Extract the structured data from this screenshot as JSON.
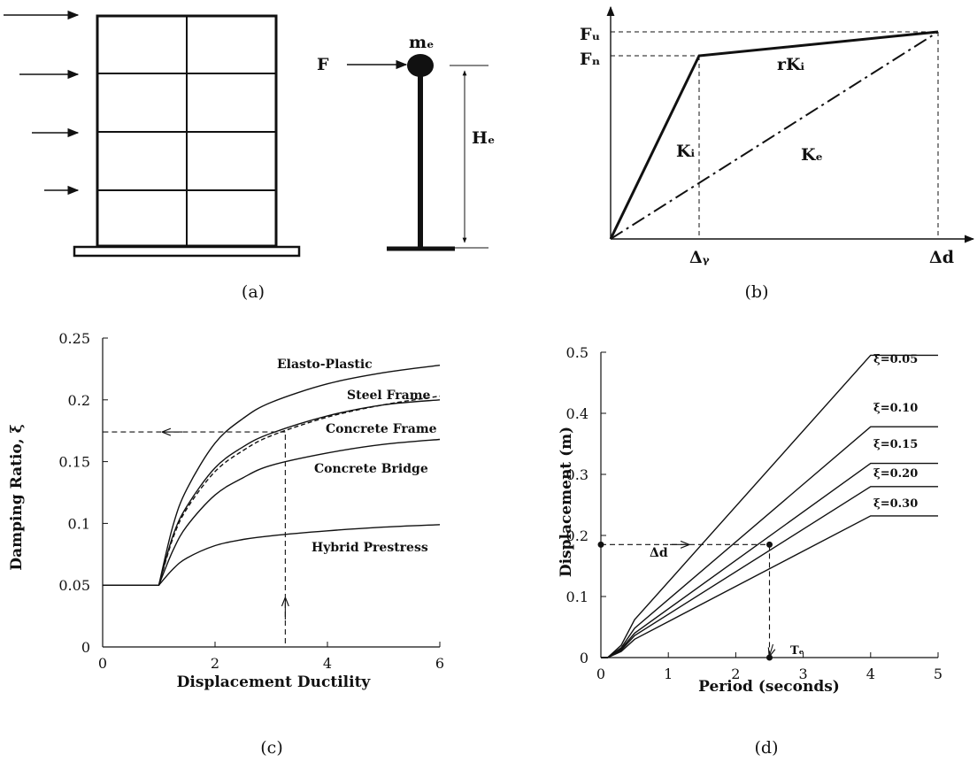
{
  "panels": {
    "a": {
      "caption": "(a)",
      "labels": {
        "force": "F",
        "mass": "mₑ",
        "height": "Hₑ"
      }
    },
    "b": {
      "caption": "(b)",
      "labels": {
        "fu": "Fᵤ",
        "fn": "Fₙ",
        "rki": "rKᵢ",
        "ki": "Kᵢ",
        "ke": "Kₑ",
        "delta_y": "Δᵧ",
        "delta_d": "Δd"
      }
    },
    "c": {
      "caption": "(c)",
      "xlabel": "Displacement Ductility",
      "ylabel": "Damping Ratio, ξ",
      "xticks": [
        "0",
        "2",
        "4",
        "6"
      ],
      "yticks": [
        "0",
        "0.05",
        "0.1",
        "0.15",
        "0.2",
        "0.25"
      ],
      "series_labels": [
        "Elasto-Plastic",
        "Steel Frame",
        "Concrete Frame",
        "Concrete Bridge",
        "Hybrid Prestress"
      ]
    },
    "d": {
      "caption": "(d)",
      "xlabel": "Period (seconds)",
      "ylabel": "Displacement (m)",
      "xticks": [
        "0",
        "1",
        "2",
        "3",
        "4",
        "5"
      ],
      "yticks": [
        "0",
        "0.1",
        "0.2",
        "0.3",
        "0.4",
        "0.5"
      ],
      "series_labels": [
        "ξ=0.05",
        "ξ=0.10",
        "ξ=0.15",
        "ξ=0.20",
        "ξ=0.30"
      ],
      "delta_label": "Δd",
      "t_label": "Tₑ"
    }
  },
  "chart_data": [
    {
      "type": "line",
      "xlabel": "Displacement Ductility",
      "ylabel": "Damping Ratio, ξ",
      "xlim": [
        0,
        6
      ],
      "ylim": [
        0,
        0.25
      ],
      "grid": false,
      "series": [
        {
          "name": "Elasto-Plastic",
          "x": [
            0,
            1,
            1.25,
            1.5,
            2,
            2.5,
            3,
            4,
            5,
            6
          ],
          "y": [
            0.05,
            0.05,
            0.098,
            0.128,
            0.165,
            0.185,
            0.198,
            0.213,
            0.222,
            0.228
          ]
        },
        {
          "name": "Steel Frame",
          "x": [
            0,
            1,
            1.25,
            1.5,
            2,
            2.5,
            3,
            4,
            5,
            6
          ],
          "y": [
            0.05,
            0.05,
            0.088,
            0.112,
            0.142,
            0.159,
            0.171,
            0.186,
            0.196,
            0.203
          ],
          "style": "dashed"
        },
        {
          "name": "Concrete Frame",
          "x": [
            0,
            1,
            1.25,
            1.5,
            2,
            2.5,
            3,
            4,
            5,
            6
          ],
          "y": [
            0.05,
            0.05,
            0.09,
            0.114,
            0.145,
            0.162,
            0.173,
            0.187,
            0.196,
            0.2
          ]
        },
        {
          "name": "Concrete Bridge",
          "x": [
            0,
            1,
            1.25,
            1.5,
            2,
            2.5,
            3,
            4,
            5,
            6
          ],
          "y": [
            0.05,
            0.05,
            0.078,
            0.098,
            0.123,
            0.137,
            0.147,
            0.157,
            0.164,
            0.168
          ]
        },
        {
          "name": "Hybrid Prestress",
          "x": [
            0,
            1,
            1.25,
            1.5,
            2,
            2.5,
            3,
            4,
            5,
            6
          ],
          "y": [
            0.05,
            0.05,
            0.063,
            0.072,
            0.082,
            0.087,
            0.09,
            0.094,
            0.097,
            0.099
          ]
        }
      ],
      "guide": {
        "x": 3.25,
        "y": 0.174
      }
    },
    {
      "type": "line",
      "xlabel": "Period (seconds)",
      "ylabel": "Displacement (m)",
      "xlim": [
        0,
        5
      ],
      "ylim": [
        0,
        0.5
      ],
      "grid": false,
      "series": [
        {
          "name": "ξ=0.05",
          "x": [
            0,
            0.1,
            0.3,
            0.5,
            4,
            5
          ],
          "y": [
            0,
            0,
            0.02,
            0.062,
            0.495,
            0.495
          ]
        },
        {
          "name": "ξ=0.10",
          "x": [
            0,
            0.1,
            0.3,
            0.5,
            4,
            5
          ],
          "y": [
            0,
            0,
            0.016,
            0.048,
            0.378,
            0.378
          ]
        },
        {
          "name": "ξ=0.15",
          "x": [
            0,
            0.1,
            0.3,
            0.5,
            4,
            5
          ],
          "y": [
            0,
            0,
            0.014,
            0.04,
            0.318,
            0.318
          ]
        },
        {
          "name": "ξ=0.20",
          "x": [
            0,
            0.1,
            0.3,
            0.5,
            4,
            5
          ],
          "y": [
            0,
            0,
            0.012,
            0.036,
            0.28,
            0.28
          ]
        },
        {
          "name": "ξ=0.30",
          "x": [
            0,
            0.1,
            0.3,
            0.5,
            4,
            5
          ],
          "y": [
            0,
            0,
            0.01,
            0.03,
            0.232,
            0.232
          ]
        }
      ],
      "guide": {
        "x": 2.5,
        "y": 0.185
      }
    }
  ]
}
